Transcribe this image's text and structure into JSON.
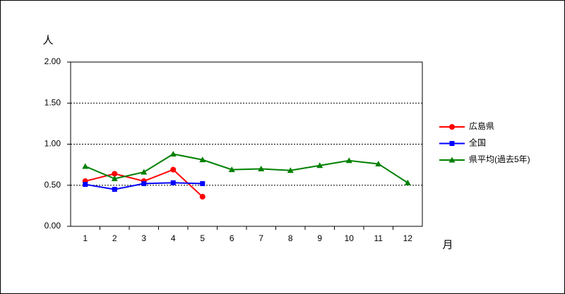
{
  "chart_data": {
    "type": "line",
    "y_label": "人",
    "x_label": "月",
    "categories": [
      "1",
      "2",
      "3",
      "4",
      "5",
      "6",
      "7",
      "8",
      "9",
      "10",
      "11",
      "12"
    ],
    "series": [
      {
        "name": "広島県",
        "color": "#ff0000",
        "marker": "circle",
        "values": [
          0.55,
          0.64,
          0.55,
          0.69,
          0.36,
          null,
          null,
          null,
          null,
          null,
          null,
          null
        ]
      },
      {
        "name": "全国",
        "color": "#0000ff",
        "marker": "square",
        "values": [
          0.51,
          0.45,
          0.52,
          0.53,
          0.52,
          null,
          null,
          null,
          null,
          null,
          null,
          null
        ]
      },
      {
        "name": "県平均(過去5年)",
        "color": "#008000",
        "marker": "triangle",
        "values": [
          0.73,
          0.58,
          0.66,
          0.88,
          0.81,
          0.69,
          0.7,
          0.68,
          0.74,
          0.8,
          0.76,
          0.53
        ]
      }
    ],
    "ylim": [
      0,
      2
    ],
    "yticks": [
      {
        "value": 0,
        "label": "0.00"
      },
      {
        "value": 0.5,
        "label": "0.50"
      },
      {
        "value": 1,
        "label": "1.00"
      },
      {
        "value": 1.5,
        "label": "1.50"
      },
      {
        "value": 2,
        "label": "2.00"
      }
    ],
    "grid": true
  }
}
